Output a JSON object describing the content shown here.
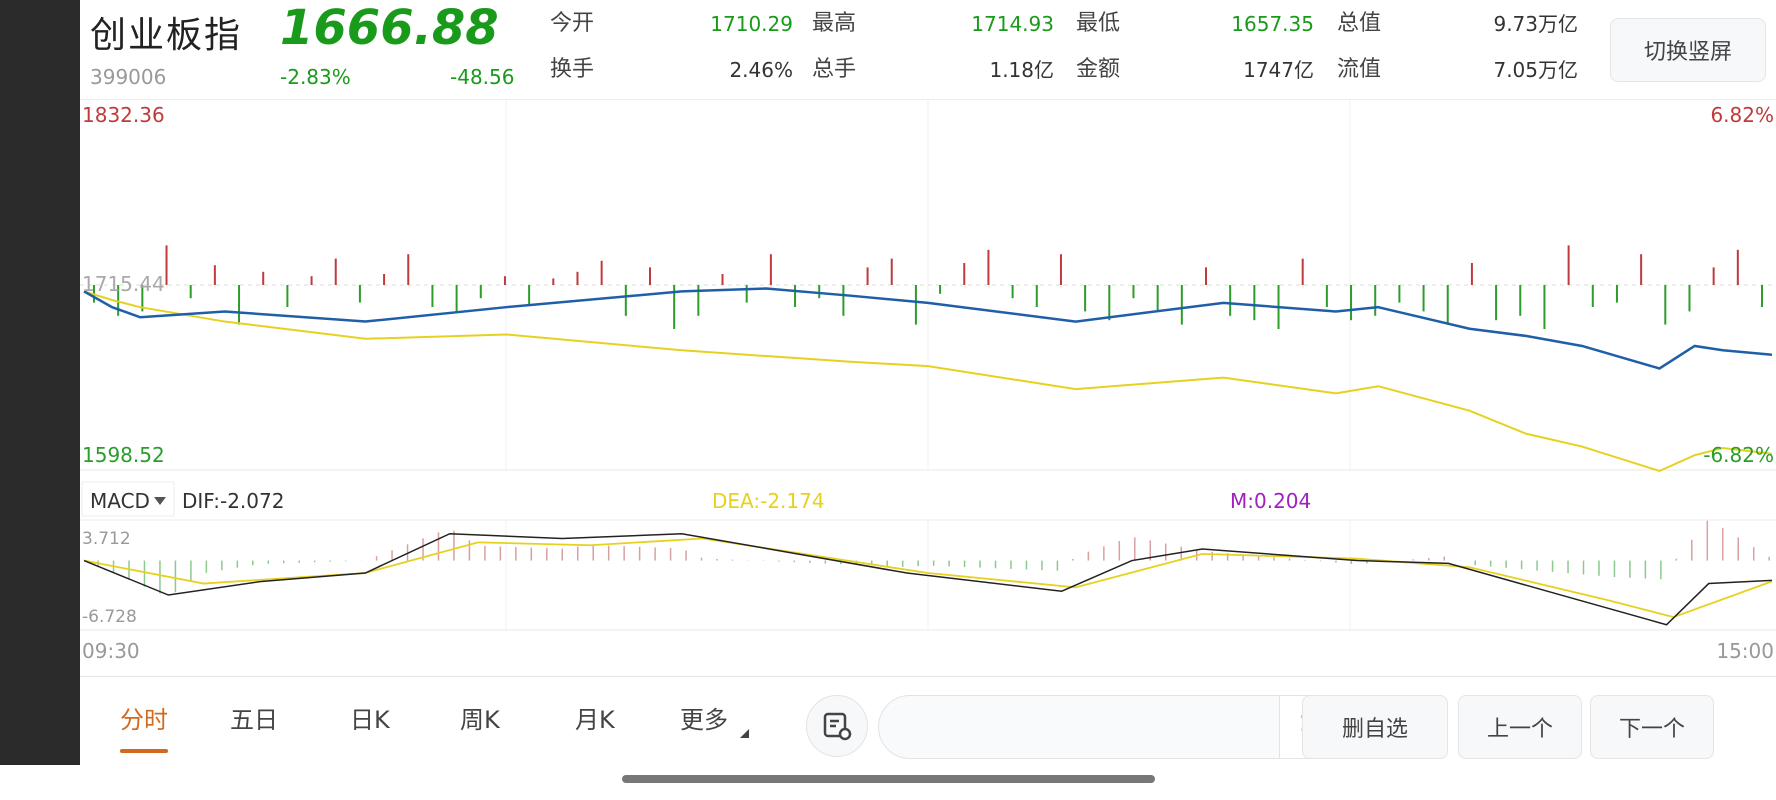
{
  "header": {
    "name": "创业板指",
    "price": "1666.88",
    "code": "399006",
    "change_pct": "-2.83%",
    "change": "-48.56",
    "stats": [
      {
        "label": "今开",
        "value": "1710.29",
        "color": "green"
      },
      {
        "label": "最高",
        "value": "1714.93",
        "color": "green"
      },
      {
        "label": "最低",
        "value": "1657.35",
        "color": "green"
      },
      {
        "label": "总值",
        "value": "9.73万亿",
        "color": "black"
      },
      {
        "label": "换手",
        "value": "2.46%",
        "color": "black"
      },
      {
        "label": "总手",
        "value": "1.18亿",
        "color": "black"
      },
      {
        "label": "金额",
        "value": "1747亿",
        "color": "black"
      },
      {
        "label": "流值",
        "value": "7.05万亿",
        "color": "black"
      }
    ],
    "switch_button": "切换竖屏"
  },
  "colors": {
    "up": "#c0393b",
    "down": "#2a9d2a",
    "price_line": "#1f5fa8",
    "avg_line": "#e6d21e",
    "dif": "#222222",
    "dea": "#e6d21e",
    "m": "#a020c0",
    "accent": "#d2691e"
  },
  "chart_data": [
    {
      "type": "line",
      "y_max_label": "1832.36",
      "y_min_label": "1598.52",
      "base_label": "1715.44",
      "pct_max_label": "6.82%",
      "pct_min_label": "-6.82%",
      "ylim": [
        1598.52,
        1832.36
      ],
      "base": 1715.44,
      "x_ticks": [
        "09:30",
        "15:00"
      ],
      "series": [
        {
          "key": "price",
          "points": [
            [
              "09:30",
              1711
            ],
            [
              "09:34",
              1700
            ],
            [
              "09:38",
              1693
            ],
            [
              "09:50",
              1697
            ],
            [
              "10:10",
              1690
            ],
            [
              "10:30",
              1700
            ],
            [
              "10:55",
              1711
            ],
            [
              "11:07",
              1713
            ],
            [
              "11:19",
              1708
            ],
            [
              "11:30",
              1703
            ],
            [
              "13:21",
              1690
            ],
            [
              "13:42",
              1703
            ],
            [
              "13:58",
              1697
            ],
            [
              "14:04",
              1700
            ],
            [
              "14:17",
              1685
            ],
            [
              "14:25",
              1680
            ],
            [
              "14:33",
              1673
            ],
            [
              "14:44",
              1657.35
            ],
            [
              "14:49",
              1673
            ],
            [
              "14:53",
              1670
            ],
            [
              "15:00",
              1666.88
            ]
          ]
        },
        {
          "key": "avg",
          "points": [
            [
              "09:30",
              1711
            ],
            [
              "09:34",
              1705
            ],
            [
              "09:38",
              1700
            ],
            [
              "09:50",
              1690
            ],
            [
              "10:10",
              1678
            ],
            [
              "10:30",
              1681
            ],
            [
              "10:55",
              1670
            ],
            [
              "11:07",
              1666
            ],
            [
              "11:19",
              1662
            ],
            [
              "11:30",
              1659
            ],
            [
              "13:21",
              1643
            ],
            [
              "13:42",
              1651
            ],
            [
              "13:58",
              1640
            ],
            [
              "14:04",
              1645
            ],
            [
              "14:17",
              1628
            ],
            [
              "14:25",
              1612
            ],
            [
              "14:33",
              1603
            ],
            [
              "14:44",
              1586
            ],
            [
              "14:49",
              1597
            ],
            [
              "14:53",
              1602
            ],
            [
              "15:00",
              1598
            ]
          ]
        }
      ],
      "bars": [
        -8,
        -14,
        -12,
        18,
        -6,
        9,
        -18,
        6,
        -10,
        4,
        12,
        -8,
        5,
        14,
        -10,
        -12,
        -6,
        4,
        -9,
        3,
        6,
        11,
        -14,
        8,
        -20,
        -14,
        5,
        -8,
        14,
        -10,
        -6,
        -14,
        8,
        12,
        -18,
        -4,
        10,
        16,
        -6,
        -10,
        14,
        -12,
        -16,
        -6,
        -12,
        -18,
        8,
        -14,
        -16,
        -20,
        12,
        -10,
        -16,
        -14,
        -8,
        -12,
        -18,
        10,
        -16,
        -14,
        -20,
        18,
        -10,
        -8,
        14,
        -18,
        -12,
        8,
        16,
        -10
      ]
    },
    {
      "type": "line",
      "indicator": "MACD",
      "dif_label": "DIF:-2.072",
      "dea_label": "DEA:-2.174",
      "m_label": "M:0.204",
      "y_max_label": "3.712",
      "y_min_label": "-6.728",
      "ylim": [
        -6.728,
        3.712
      ],
      "series": [
        {
          "key": "dif",
          "points": [
            [
              "09:30",
              0
            ],
            [
              "09:42",
              -3.6
            ],
            [
              "09:55",
              -2.2
            ],
            [
              "10:10",
              -1.3
            ],
            [
              "10:22",
              2.8
            ],
            [
              "10:38",
              2.3
            ],
            [
              "10:55",
              2.8
            ],
            [
              "11:27",
              -1.3
            ],
            [
              "13:19",
              -3.2
            ],
            [
              "13:29",
              0
            ],
            [
              "13:39",
              1.2
            ],
            [
              "14:01",
              0
            ],
            [
              "14:14",
              -0.3
            ],
            [
              "14:30",
              -3.6
            ],
            [
              "14:45",
              -6.7
            ],
            [
              "14:51",
              -2.4
            ],
            [
              "15:00",
              -2.072
            ]
          ]
        },
        {
          "key": "dea",
          "points": [
            [
              "09:30",
              0
            ],
            [
              "09:47",
              -2.4
            ],
            [
              "10:10",
              -1.3
            ],
            [
              "10:26",
              1.9
            ],
            [
              "10:42",
              1.6
            ],
            [
              "10:58",
              2.3
            ],
            [
              "11:30",
              -1.3
            ],
            [
              "13:21",
              -2.8
            ],
            [
              "13:39",
              0.7
            ],
            [
              "14:01",
              0.2
            ],
            [
              "14:17",
              -0.7
            ],
            [
              "14:37",
              -4.2
            ],
            [
              "14:46",
              -5.9
            ],
            [
              "15:00",
              -2.174
            ]
          ]
        }
      ]
    }
  ],
  "indicator_select": "MACD",
  "bottom": {
    "tabs": [
      "分时",
      "五日",
      "日K",
      "周K",
      "月K",
      "更多"
    ],
    "active_tab": 0,
    "comment_input_placeholder": "",
    "danmu_icon": "弹",
    "buttons": [
      "删自选",
      "上一个",
      "下一个"
    ]
  }
}
